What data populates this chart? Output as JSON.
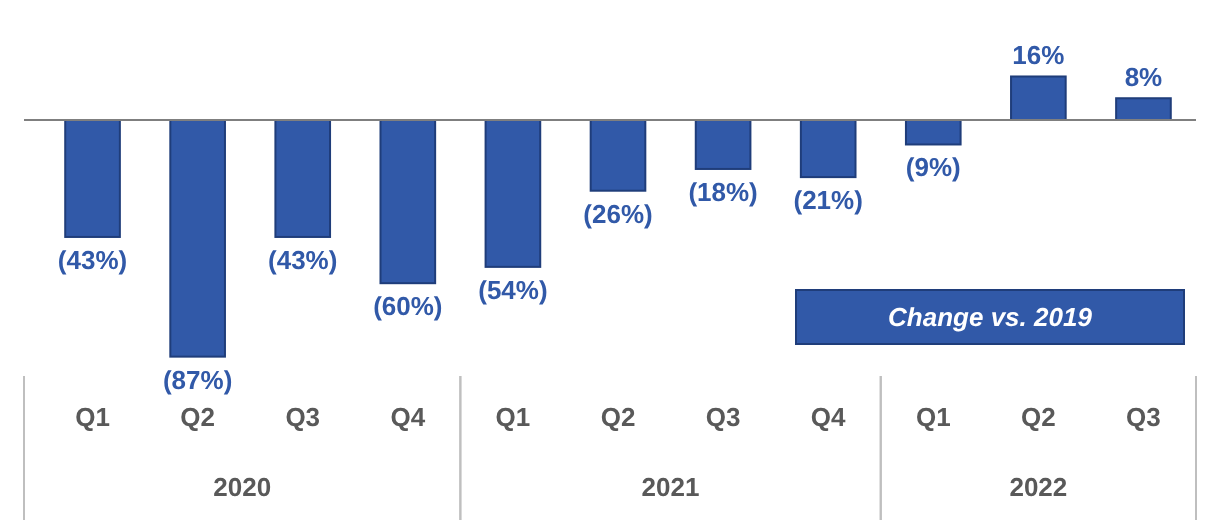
{
  "chart_data": {
    "type": "bar",
    "categories": [
      "Q1",
      "Q2",
      "Q3",
      "Q4",
      "Q1",
      "Q2",
      "Q3",
      "Q4",
      "Q1",
      "Q2",
      "Q3"
    ],
    "series": [
      {
        "name": "Change vs. 2019",
        "color": "#3159a8",
        "values": [
          -43,
          -87,
          -43,
          -60,
          -54,
          -26,
          -18,
          -21,
          -9,
          16,
          8
        ],
        "value_labels": [
          "(43%)",
          "(87%)",
          "(43%)",
          "(60%)",
          "(54%)",
          "(26%)",
          "(18%)",
          "(21%)",
          "(9%)",
          "16%",
          "8%"
        ]
      }
    ],
    "annotations": [
      "2020",
      "2021",
      "2022"
    ],
    "legend": "bottom right"
  }
}
